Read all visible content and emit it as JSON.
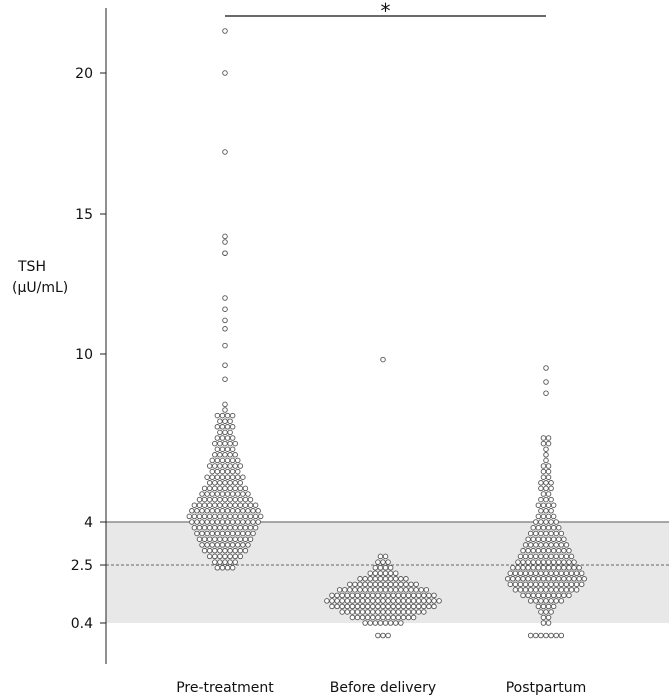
{
  "chart_data": {
    "type": "scatter",
    "title": "",
    "ylabel_lines": [
      "TSH",
      "(μU/mL)"
    ],
    "xlabel": "",
    "categories": [
      "Pre-treatment",
      "Before delivery",
      "Postpartum"
    ],
    "y_ticks": [
      {
        "value": 0.4,
        "label": "0.4"
      },
      {
        "value": 2.5,
        "label": "2.5"
      },
      {
        "value": 4,
        "label": "4"
      },
      {
        "value": 10,
        "label": "10"
      },
      {
        "value": 15,
        "label": "15"
      },
      {
        "value": 20,
        "label": "20"
      }
    ],
    "reference_band": {
      "from": 0.4,
      "to": 4,
      "color": "#e8e8e8"
    },
    "reference_lines": [
      {
        "value": 4,
        "style": "solid"
      },
      {
        "value": 2.5,
        "style": "dashed"
      }
    ],
    "significance": {
      "from": "Pre-treatment",
      "to": "Postpartum",
      "label": "*"
    },
    "series": [
      {
        "category": "Pre-treatment",
        "outliers": [
          21.5,
          20.0,
          17.2,
          14.2,
          14.0,
          13.6,
          13.6,
          12.0,
          11.6,
          11.2,
          10.9,
          10.3,
          9.6,
          9.1,
          8.2,
          8.0
        ],
        "strata": [
          {
            "y": 7.8,
            "n": 4
          },
          {
            "y": 7.6,
            "n": 3
          },
          {
            "y": 7.4,
            "n": 4
          },
          {
            "y": 7.2,
            "n": 3
          },
          {
            "y": 7.0,
            "n": 4
          },
          {
            "y": 6.8,
            "n": 5
          },
          {
            "y": 6.6,
            "n": 4
          },
          {
            "y": 6.4,
            "n": 5
          },
          {
            "y": 6.2,
            "n": 6
          },
          {
            "y": 6.0,
            "n": 7
          },
          {
            "y": 5.8,
            "n": 6
          },
          {
            "y": 5.6,
            "n": 8
          },
          {
            "y": 5.4,
            "n": 7
          },
          {
            "y": 5.2,
            "n": 9
          },
          {
            "y": 5.0,
            "n": 10
          },
          {
            "y": 4.8,
            "n": 11
          },
          {
            "y": 4.6,
            "n": 13
          },
          {
            "y": 4.4,
            "n": 14
          },
          {
            "y": 4.2,
            "n": 15
          },
          {
            "y": 4.0,
            "n": 14
          },
          {
            "y": 3.8,
            "n": 13
          },
          {
            "y": 3.6,
            "n": 12
          },
          {
            "y": 3.4,
            "n": 11
          },
          {
            "y": 3.2,
            "n": 10
          },
          {
            "y": 3.0,
            "n": 9
          },
          {
            "y": 2.8,
            "n": 7
          },
          {
            "y": 2.6,
            "n": 5
          },
          {
            "y": 2.4,
            "n": 4
          }
        ]
      },
      {
        "category": "Before delivery",
        "outliers": [
          9.8
        ],
        "strata": [
          {
            "y": 2.8,
            "n": 2
          },
          {
            "y": 2.6,
            "n": 3
          },
          {
            "y": 2.4,
            "n": 4
          },
          {
            "y": 2.2,
            "n": 6
          },
          {
            "y": 2.0,
            "n": 10
          },
          {
            "y": 1.8,
            "n": 14
          },
          {
            "y": 1.6,
            "n": 18
          },
          {
            "y": 1.4,
            "n": 21
          },
          {
            "y": 1.2,
            "n": 23
          },
          {
            "y": 1.0,
            "n": 21
          },
          {
            "y": 0.8,
            "n": 17
          },
          {
            "y": 0.6,
            "n": 13
          },
          {
            "y": 0.4,
            "n": 8
          },
          {
            "y": 0.2,
            "n": 3
          }
        ]
      },
      {
        "category": "Postpartum",
        "outliers": [
          9.5,
          9.0,
          8.6
        ],
        "strata": [
          {
            "y": 7.0,
            "n": 2
          },
          {
            "y": 6.8,
            "n": 2
          },
          {
            "y": 6.6,
            "n": 1
          },
          {
            "y": 6.4,
            "n": 1
          },
          {
            "y": 6.2,
            "n": 1
          },
          {
            "y": 6.0,
            "n": 2
          },
          {
            "y": 5.8,
            "n": 2
          },
          {
            "y": 5.6,
            "n": 2
          },
          {
            "y": 5.4,
            "n": 3
          },
          {
            "y": 5.2,
            "n": 3
          },
          {
            "y": 5.0,
            "n": 2
          },
          {
            "y": 4.8,
            "n": 3
          },
          {
            "y": 4.6,
            "n": 4
          },
          {
            "y": 4.4,
            "n": 3
          },
          {
            "y": 4.2,
            "n": 4
          },
          {
            "y": 4.0,
            "n": 5
          },
          {
            "y": 3.8,
            "n": 6
          },
          {
            "y": 3.6,
            "n": 7
          },
          {
            "y": 3.4,
            "n": 8
          },
          {
            "y": 3.2,
            "n": 9
          },
          {
            "y": 3.0,
            "n": 10
          },
          {
            "y": 2.8,
            "n": 11
          },
          {
            "y": 2.6,
            "n": 12
          },
          {
            "y": 2.4,
            "n": 14
          },
          {
            "y": 2.2,
            "n": 15
          },
          {
            "y": 2.0,
            "n": 16
          },
          {
            "y": 1.8,
            "n": 15
          },
          {
            "y": 1.6,
            "n": 13
          },
          {
            "y": 1.4,
            "n": 10
          },
          {
            "y": 1.2,
            "n": 7
          },
          {
            "y": 1.0,
            "n": 4
          },
          {
            "y": 0.8,
            "n": 3
          },
          {
            "y": 0.6,
            "n": 2
          },
          {
            "y": 0.4,
            "n": 2
          },
          {
            "y": 0.2,
            "n": 7
          }
        ]
      }
    ]
  }
}
